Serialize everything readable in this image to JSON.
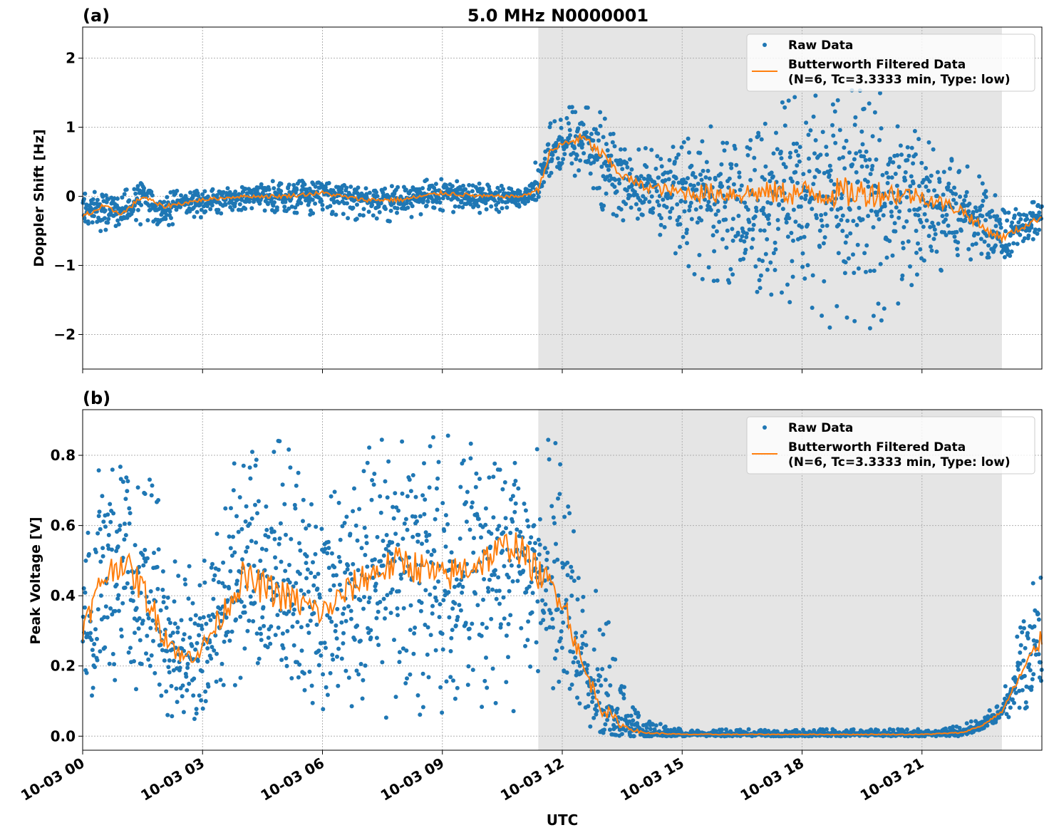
{
  "figure_title": "5.0 MHz N0000001",
  "x_label": "UTC",
  "x_ticks": [
    "10-03 00",
    "10-03 03",
    "10-03 06",
    "10-03 09",
    "10-03 12",
    "10-03 15",
    "10-03 18",
    "10-03 21"
  ],
  "legend": {
    "raw_label": "Raw Data",
    "filtered_label_line1": "Butterworth Filtered Data",
    "filtered_label_line2": "(N=6, Tc=3.3333 min, Type: low)"
  },
  "colors": {
    "raw": "#1f77b4",
    "filtered": "#ff7f0e",
    "night_shading": "#e5e5e5",
    "grid": "#b0b0b0"
  },
  "chart_data": [
    {
      "type": "scatter",
      "panel_label": "(a)",
      "ylabel": "Doppler Shift [Hz]",
      "y_ticks": [
        "2",
        "1",
        "0",
        "−1",
        "−2"
      ],
      "xlim_hours": [
        0,
        24
      ],
      "ylim": [
        -2.5,
        2.45
      ],
      "shaded_interval_hours": [
        11.4,
        23.0
      ],
      "grid": true,
      "legend_position": "upper right",
      "series": [
        {
          "name": "Raw Data",
          "style": "points",
          "x_hours": [
            0,
            0.5,
            1,
            1.5,
            2,
            3,
            4,
            5,
            6,
            7,
            8,
            9,
            10,
            11,
            11.4,
            11.7,
            12,
            12.5,
            13,
            13.5,
            14,
            15,
            16,
            17,
            18,
            19,
            20,
            21,
            22,
            22.5,
            23,
            24
          ],
          "upper_envelope": [
            0.15,
            0.1,
            0.1,
            0.2,
            0.1,
            0.1,
            0.15,
            0.25,
            0.2,
            0.15,
            0.15,
            0.3,
            0.2,
            0.1,
            0.6,
            1.1,
            1.3,
            1.5,
            1.3,
            0.8,
            0.7,
            0.9,
            1.1,
            1.3,
            1.5,
            1.6,
            1.5,
            0.9,
            0.5,
            0.3,
            0.0,
            -0.05
          ],
          "lower_envelope": [
            -0.7,
            -0.5,
            -0.5,
            -0.4,
            -0.45,
            -0.3,
            -0.2,
            -0.25,
            -0.3,
            -0.35,
            -0.4,
            -0.25,
            -0.25,
            -0.2,
            -0.1,
            0.3,
            0.3,
            0.2,
            -0.2,
            -0.4,
            -0.5,
            -1.0,
            -1.5,
            -1.4,
            -1.7,
            -2.2,
            -1.8,
            -1.2,
            -1.0,
            -0.9,
            -0.9,
            -0.7
          ]
        },
        {
          "name": "Butterworth Filtered Data (N=6, Tc=3.3333 min, Type: low)",
          "style": "line",
          "x_hours": [
            0,
            0.5,
            1,
            1.5,
            2,
            3,
            4,
            5,
            6,
            7,
            8,
            9,
            10,
            11,
            11.4,
            11.7,
            12,
            12.5,
            13,
            13.5,
            14,
            15,
            16,
            17,
            18,
            19,
            20,
            21,
            22,
            22.5,
            23,
            24
          ],
          "values": [
            -0.3,
            -0.15,
            -0.25,
            0.0,
            -0.15,
            -0.05,
            0.0,
            0.0,
            0.05,
            -0.05,
            -0.05,
            0.05,
            0.0,
            0.0,
            0.1,
            0.65,
            0.75,
            0.85,
            0.6,
            0.3,
            0.15,
            0.05,
            0.05,
            0.05,
            0.05,
            0.05,
            0.05,
            0.0,
            -0.2,
            -0.45,
            -0.6,
            -0.3
          ]
        }
      ]
    },
    {
      "type": "scatter",
      "panel_label": "(b)",
      "ylabel": "Peak Voltage [V]",
      "y_ticks": [
        "0.8",
        "0.6",
        "0.4",
        "0.2",
        "0.0"
      ],
      "xlim_hours": [
        0,
        24
      ],
      "ylim": [
        -0.04,
        0.93
      ],
      "shaded_interval_hours": [
        11.4,
        23.0
      ],
      "grid": true,
      "legend_position": "upper right",
      "series": [
        {
          "name": "Raw Data",
          "style": "points",
          "x_hours": [
            0,
            0.5,
            1,
            1.5,
            2,
            2.5,
            3,
            4,
            5,
            6,
            7,
            8,
            9,
            10,
            10.8,
            11.5,
            12,
            12.5,
            13,
            13.5,
            14,
            15,
            16,
            17,
            18,
            19,
            20,
            21,
            22,
            22.5,
            23,
            23.5,
            24
          ],
          "upper_envelope": [
            0.65,
            0.85,
            0.86,
            0.86,
            0.75,
            0.5,
            0.55,
            0.84,
            0.85,
            0.72,
            0.82,
            0.87,
            0.86,
            0.87,
            0.88,
            0.87,
            0.86,
            0.45,
            0.4,
            0.16,
            0.05,
            0.02,
            0.02,
            0.02,
            0.02,
            0.02,
            0.02,
            0.02,
            0.03,
            0.06,
            0.1,
            0.35,
            0.56
          ],
          "lower_envelope": [
            0.12,
            0.1,
            0.15,
            0.1,
            0.06,
            0.05,
            0.04,
            0.03,
            0.04,
            0.04,
            0.05,
            0.05,
            0.05,
            0.06,
            0.06,
            0.1,
            0.1,
            0.03,
            0.01,
            0.0,
            0.0,
            0.0,
            0.0,
            0.0,
            0.0,
            0.0,
            0.0,
            0.0,
            0.0,
            0.02,
            0.04,
            0.07,
            0.1
          ]
        },
        {
          "name": "Butterworth Filtered Data (N=6, Tc=3.3333 min, Type: low)",
          "style": "line",
          "x_hours": [
            0,
            0.5,
            1,
            1.5,
            2,
            2.5,
            3,
            4,
            5,
            6,
            7,
            8,
            9,
            10,
            10.8,
            11.5,
            12,
            12.5,
            13,
            13.5,
            14,
            15,
            16,
            17,
            18,
            19,
            20,
            21,
            22,
            22.5,
            23,
            23.5,
            24
          ],
          "values": [
            0.3,
            0.45,
            0.5,
            0.42,
            0.3,
            0.22,
            0.25,
            0.45,
            0.4,
            0.35,
            0.45,
            0.5,
            0.45,
            0.5,
            0.55,
            0.45,
            0.4,
            0.2,
            0.08,
            0.03,
            0.01,
            0.005,
            0.005,
            0.005,
            0.005,
            0.005,
            0.005,
            0.005,
            0.01,
            0.03,
            0.07,
            0.18,
            0.28
          ]
        }
      ]
    }
  ]
}
